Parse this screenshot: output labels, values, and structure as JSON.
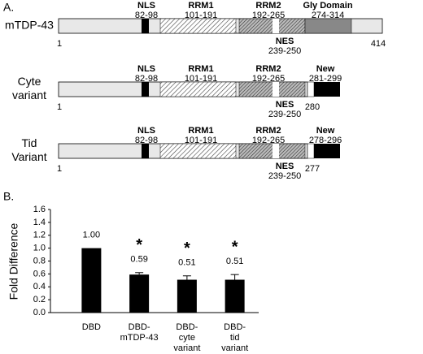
{
  "panel_a": {
    "label": "A.",
    "constructs": [
      {
        "name_lines": [
          "mTDP-43"
        ],
        "start": "1",
        "end": "414",
        "domains": [
          {
            "name": "NLS",
            "range": "82-98"
          },
          {
            "name": "RRM1",
            "range": "101-191"
          },
          {
            "name": "RRM2",
            "range": "192-265"
          },
          {
            "name": "NES",
            "range": "239-250"
          },
          {
            "name": "Gly Domain",
            "range": "274-314"
          }
        ]
      },
      {
        "name_lines": [
          "Cyte",
          "variant"
        ],
        "start": "1",
        "end": "280",
        "domains": [
          {
            "name": "NLS",
            "range": "82-98"
          },
          {
            "name": "RRM1",
            "range": "101-191"
          },
          {
            "name": "RRM2",
            "range": "192-265"
          },
          {
            "name": "NES",
            "range": "239-250"
          },
          {
            "name": "New",
            "range": "281-299"
          }
        ]
      },
      {
        "name_lines": [
          "Tid",
          "Variant"
        ],
        "start": "1",
        "end": "277",
        "domains": [
          {
            "name": "NLS",
            "range": "82-98"
          },
          {
            "name": "RRM1",
            "range": "101-191"
          },
          {
            "name": "RRM2",
            "range": "192-265"
          },
          {
            "name": "NES",
            "range": "239-250"
          },
          {
            "name": "New",
            "range": "278-296"
          }
        ]
      }
    ]
  },
  "chart_data": {
    "type": "bar",
    "panel_label": "B.",
    "y_label": "Fold Difference",
    "categories": [
      [
        "DBD"
      ],
      [
        "DBD-",
        "mTDP-43"
      ],
      [
        "DBD-",
        "cyte",
        "variant"
      ],
      [
        "DBD-",
        "tid",
        "variant"
      ]
    ],
    "values": [
      1.0,
      0.59,
      0.51,
      0.51
    ],
    "value_labels": [
      "1.00",
      "0.59",
      "0.51",
      "0.51"
    ],
    "errors": [
      0,
      0.03,
      0.06,
      0.08
    ],
    "significance": [
      null,
      "*",
      "*",
      "*"
    ],
    "color": "#000000",
    "ylim": [
      0,
      1.6
    ],
    "yticks": [
      {
        "value": 0,
        "label": "0.0"
      },
      0.2,
      0.4,
      0.6,
      0.8,
      {
        "value": 1,
        "label": "1.0"
      },
      1.2,
      1.4,
      1.6
    ]
  }
}
